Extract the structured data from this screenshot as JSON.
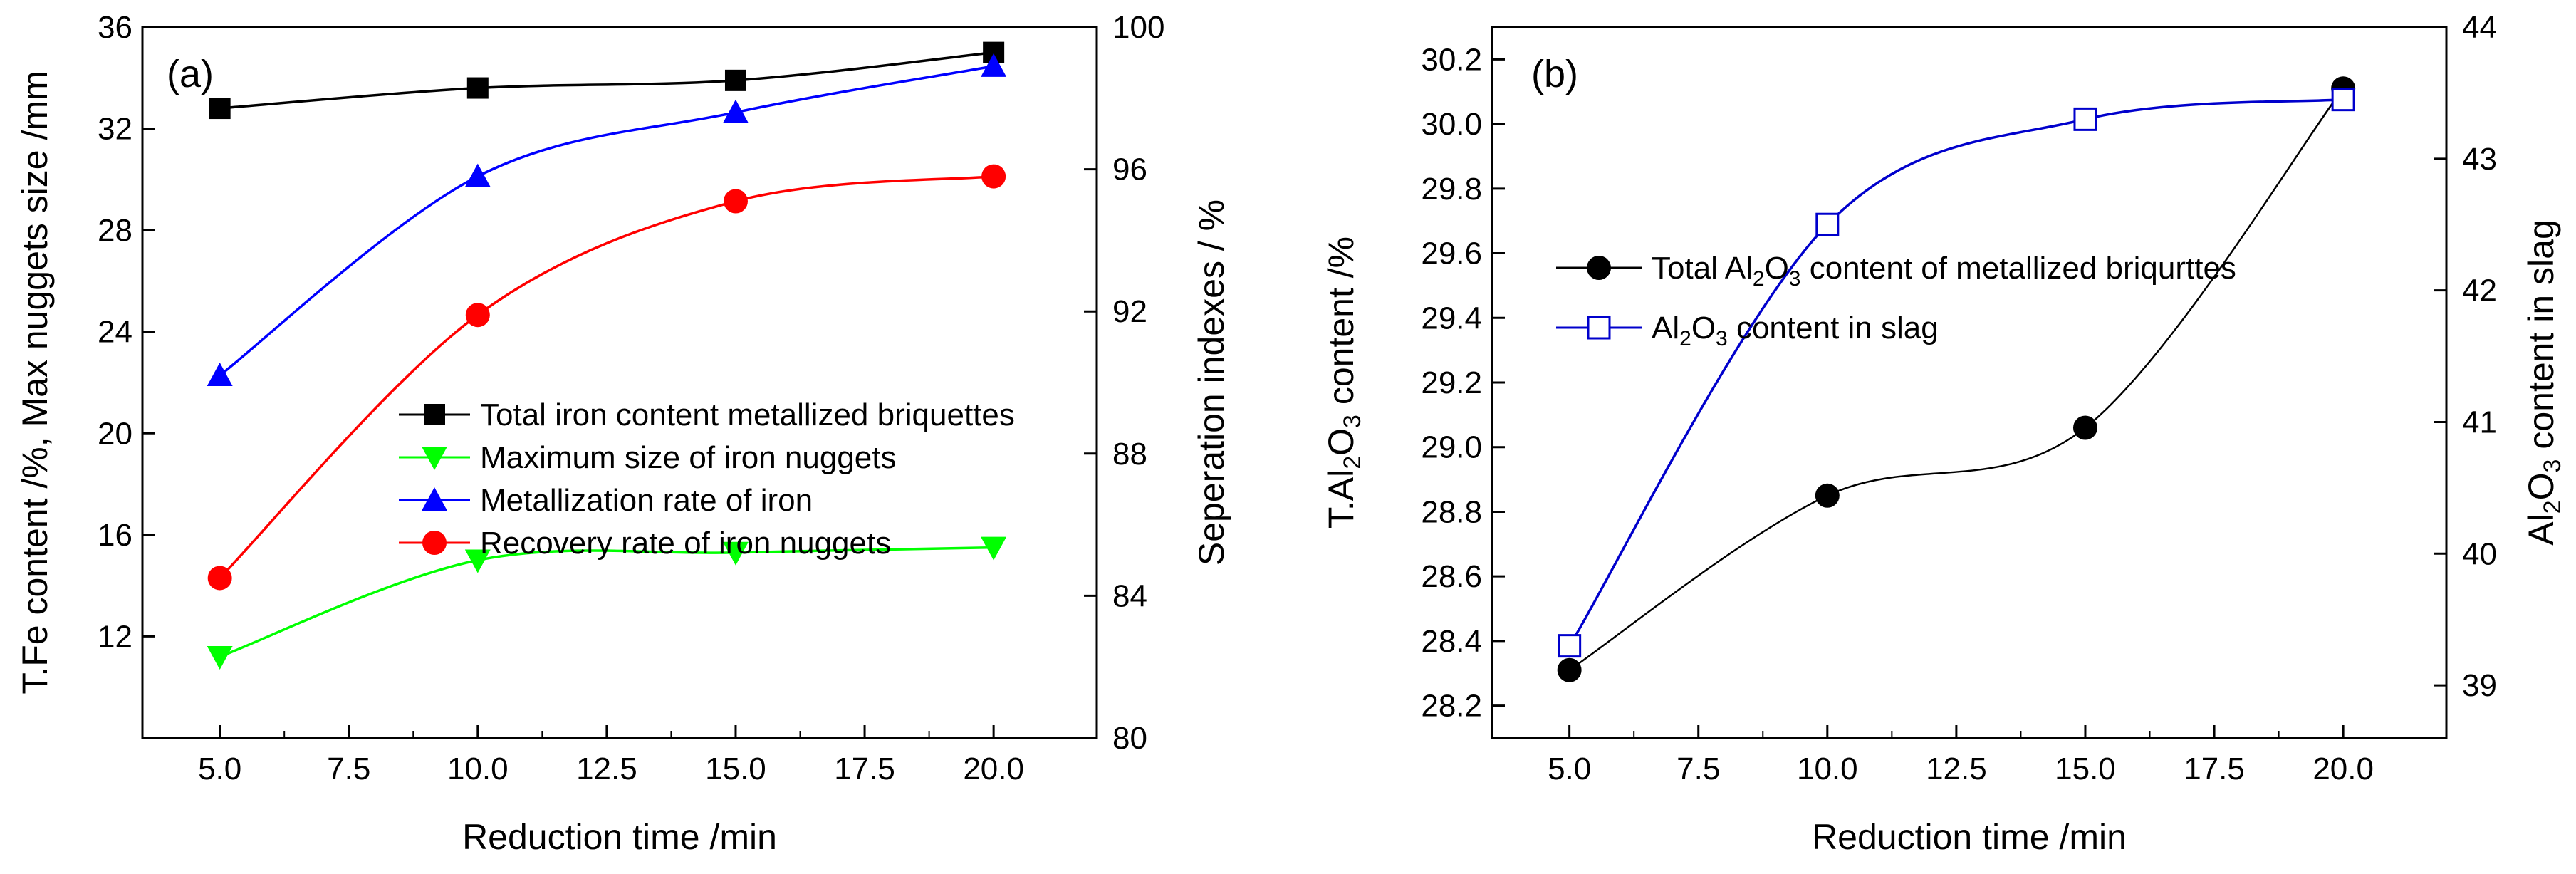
{
  "chart_data": [
    {
      "panel": "(a)",
      "type": "line",
      "xlabel": "Reduction time /min",
      "ylabel_left": "T.Fe content /%, Max nuggets size /mm",
      "ylabel_right": "Seperation indexes / %",
      "xlim": [
        3.5,
        22
      ],
      "ylim_left": [
        8,
        36
      ],
      "ylim_right": [
        80,
        100
      ],
      "x_ticks": [
        "5.0",
        "7.5",
        "10.0",
        "12.5",
        "15.0",
        "17.5",
        "20.0"
      ],
      "y_left_ticks": [
        "12",
        "16",
        "20",
        "24",
        "28",
        "32",
        "36"
      ],
      "y_right_ticks": [
        "80",
        "84",
        "88",
        "92",
        "96",
        "100"
      ],
      "legend_position": "center-right",
      "series": [
        {
          "name": "Total iron content metallized briquettes",
          "axis": "left",
          "color": "#000000",
          "marker": "square",
          "x": [
            5,
            10,
            15,
            20
          ],
          "values": [
            32.8,
            33.6,
            33.9,
            35.0
          ]
        },
        {
          "name": "Maximum size of iron nuggets",
          "axis": "left",
          "color": "#00ff00",
          "marker": "triangle-down",
          "x": [
            5,
            10,
            15,
            20
          ],
          "values": [
            11.2,
            15.0,
            15.3,
            15.5
          ]
        },
        {
          "name": "Metallization rate of iron",
          "axis": "right",
          "color": "#0000ff",
          "marker": "triangle-up",
          "x": [
            5,
            10,
            15,
            20
          ],
          "values": [
            90.2,
            95.8,
            97.6,
            98.9
          ]
        },
        {
          "name": "Recovery rate of iron nuggets",
          "axis": "right",
          "color": "#ff0000",
          "marker": "circle",
          "x": [
            5,
            10,
            15,
            20
          ],
          "values": [
            84.5,
            91.9,
            95.1,
            95.8
          ]
        }
      ]
    },
    {
      "panel": "(b)",
      "type": "line",
      "xlabel": "Reduction time /min",
      "ylabel_left": "T.Al2O3 content /%",
      "ylabel_right": "Al2O3 content in slag",
      "xlim": [
        3.5,
        22
      ],
      "ylim_left": [
        28.1,
        30.3
      ],
      "ylim_right": [
        38.6,
        44
      ],
      "x_ticks": [
        "5.0",
        "7.5",
        "10.0",
        "12.5",
        "15.0",
        "17.5",
        "20.0"
      ],
      "y_left_ticks": [
        "28.2",
        "28.4",
        "28.6",
        "28.8",
        "29.0",
        "29.2",
        "29.4",
        "29.6",
        "29.8",
        "30.0",
        "30.2"
      ],
      "y_right_ticks": [
        "39",
        "40",
        "41",
        "42",
        "43",
        "44"
      ],
      "legend_position": "top-left",
      "series": [
        {
          "name": "Total Al2O3 content of metallized briqurttes",
          "axis": "left",
          "color": "#000000",
          "marker": "circle",
          "x": [
            5,
            10,
            15,
            20
          ],
          "values": [
            28.31,
            28.85,
            29.06,
            30.11
          ]
        },
        {
          "name": "Al2O3 content in slag",
          "axis": "right",
          "color": "#0000cc",
          "marker": "open-square",
          "x": [
            5,
            10,
            15,
            20
          ],
          "values": [
            39.3,
            42.5,
            43.3,
            43.45
          ]
        }
      ]
    }
  ]
}
